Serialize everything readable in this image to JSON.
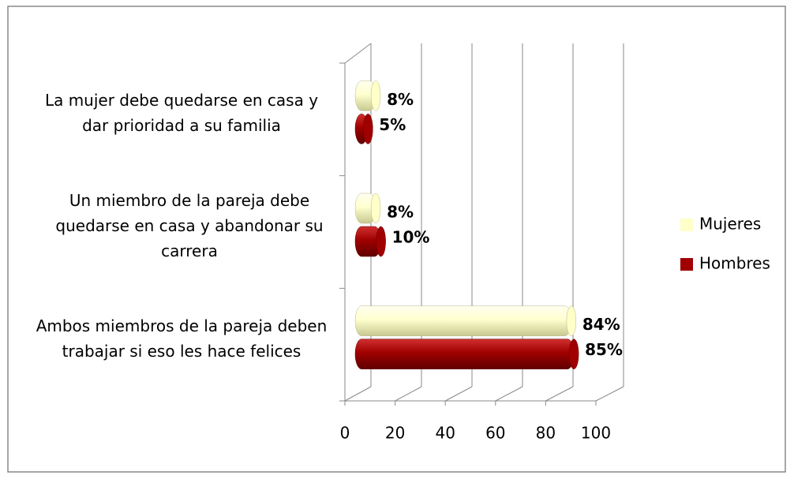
{
  "chart_data": {
    "type": "bar",
    "orientation": "horizontal",
    "3d": true,
    "categories": [
      "La mujer debe quedarse en casa y dar prioridad a su familia",
      "Un miembro de la pareja debe quedarse en casa y abandonar su carrera",
      "Ambos miembros de la pareja deben trabajar si eso les hace felices"
    ],
    "series": [
      {
        "name": "Mujeres",
        "color": "#ffffc8",
        "values": [
          8,
          8,
          84
        ],
        "value_labels": [
          "8%",
          "8%",
          "84%"
        ]
      },
      {
        "name": "Hombres",
        "color": "#a00000",
        "values": [
          5,
          10,
          85
        ],
        "value_labels": [
          "5%",
          "10%",
          "85%"
        ]
      }
    ],
    "xlim": [
      0,
      100
    ],
    "xticks": [
      0,
      20,
      40,
      60,
      80,
      100
    ],
    "grid": true,
    "legend": "right"
  }
}
